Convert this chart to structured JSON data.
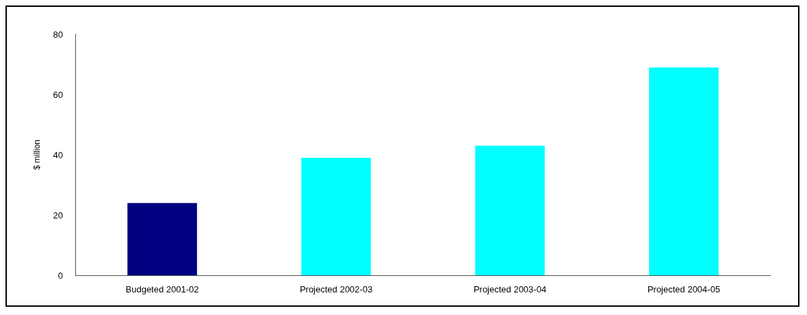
{
  "chart_data": {
    "type": "bar",
    "ylabel": "$ million",
    "categories": [
      "Budgeted 2001-02",
      "Projected 2002-03",
      "Projected 2003-04",
      "Projected 2004-05"
    ],
    "values": [
      24,
      39,
      43,
      69
    ],
    "colors": [
      "#000080",
      "#00ffff",
      "#00ffff",
      "#00ffff"
    ],
    "ylim": [
      0,
      80
    ],
    "yticks": [
      0,
      20,
      40,
      60,
      80
    ]
  }
}
